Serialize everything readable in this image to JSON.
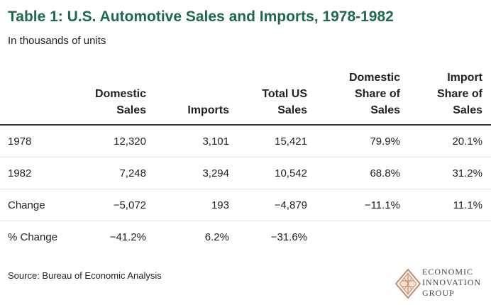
{
  "title": "Table 1: U.S. Automotive Sales and Imports, 1978-1982",
  "subtitle": "In thousands of units",
  "table": {
    "headers": [
      [
        "",
        ""
      ],
      [
        "Domestic",
        "Sales"
      ],
      [
        "",
        "Imports"
      ],
      [
        "Total US",
        "Sales"
      ],
      [
        "Domestic",
        "Share of",
        "Sales"
      ],
      [
        "Import",
        "Share of",
        "Sales"
      ]
    ],
    "rows": [
      [
        "1978",
        "12,320",
        "3,101",
        "15,421",
        "79.9%",
        "20.1%"
      ],
      [
        "1982",
        "7,248",
        "3,294",
        "10,542",
        "68.8%",
        "31.2%"
      ],
      [
        "Change",
        "−5,072",
        "193",
        "−4,879",
        "−11.1%",
        "11.1%"
      ],
      [
        "% Change",
        "−41.2%",
        "6.2%",
        "−31.6%",
        "",
        ""
      ]
    ]
  },
  "source": "Source: Bureau of Economic Analysis",
  "logo": {
    "lines": [
      "ECONOMIC",
      "INNOVATION",
      "GROUP"
    ],
    "icon": "eig-diamond-logo-icon",
    "color": "#c9896a"
  },
  "colors": {
    "title": "#1e6a4f",
    "text": "#222222",
    "header_rule": "#333333",
    "row_rule": "#e6e6e6"
  }
}
